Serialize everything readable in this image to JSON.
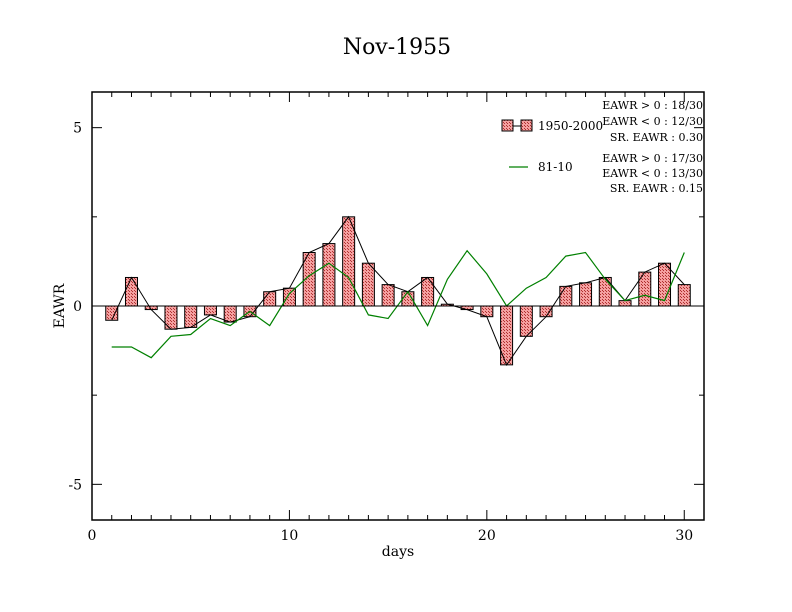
{
  "chart_data": {
    "type": "bar",
    "title": "Nov-1955",
    "xlabel": "days",
    "ylabel": "EAWR",
    "xlim": [
      0,
      31
    ],
    "ylim": [
      -6,
      6
    ],
    "xticks": [
      0,
      10,
      20,
      30
    ],
    "yticks": [
      -5,
      0,
      5
    ],
    "grid": false,
    "legend_position": "top-right",
    "series": [
      {
        "name": "1950-2000",
        "type": "bar",
        "color": "#f08080",
        "x": [
          1,
          2,
          3,
          4,
          5,
          6,
          7,
          8,
          9,
          10,
          11,
          12,
          13,
          14,
          15,
          16,
          17,
          18,
          19,
          20,
          21,
          22,
          23,
          24,
          25,
          26,
          27,
          28,
          29,
          30
        ],
        "values": [
          -0.4,
          0.8,
          -0.1,
          -0.65,
          -0.6,
          -0.25,
          -0.45,
          -0.3,
          0.4,
          0.5,
          1.5,
          1.75,
          2.5,
          1.2,
          0.6,
          0.4,
          0.8,
          0.05,
          -0.1,
          -0.3,
          -1.65,
          -0.85,
          -0.3,
          0.55,
          0.65,
          0.8,
          0.15,
          0.95,
          1.2,
          0.6
        ]
      },
      {
        "name": "81-10",
        "type": "line",
        "color": "#008000",
        "x": [
          1,
          2,
          3,
          4,
          5,
          6,
          7,
          8,
          9,
          10,
          11,
          12,
          13,
          14,
          15,
          16,
          17,
          18,
          19,
          20,
          21,
          22,
          23,
          24,
          25,
          26,
          27,
          28,
          29,
          30
        ],
        "values": [
          -1.15,
          -1.15,
          -1.45,
          -0.85,
          -0.8,
          -0.35,
          -0.55,
          -0.15,
          -0.55,
          0.35,
          0.85,
          1.2,
          0.8,
          -0.25,
          -0.35,
          0.4,
          -0.55,
          0.75,
          1.55,
          0.9,
          0.0,
          0.5,
          0.8,
          1.4,
          1.5,
          0.75,
          0.15,
          0.3,
          0.15,
          1.5
        ]
      }
    ],
    "stats": [
      [
        "EAWR > 0 : 18/30",
        "EAWR < 0 : 12/30",
        "SR. EAWR :  0.30"
      ],
      [
        "EAWR > 0 : 17/30",
        "EAWR < 0 : 13/30",
        "SR. EAWR :  0.15"
      ]
    ]
  }
}
